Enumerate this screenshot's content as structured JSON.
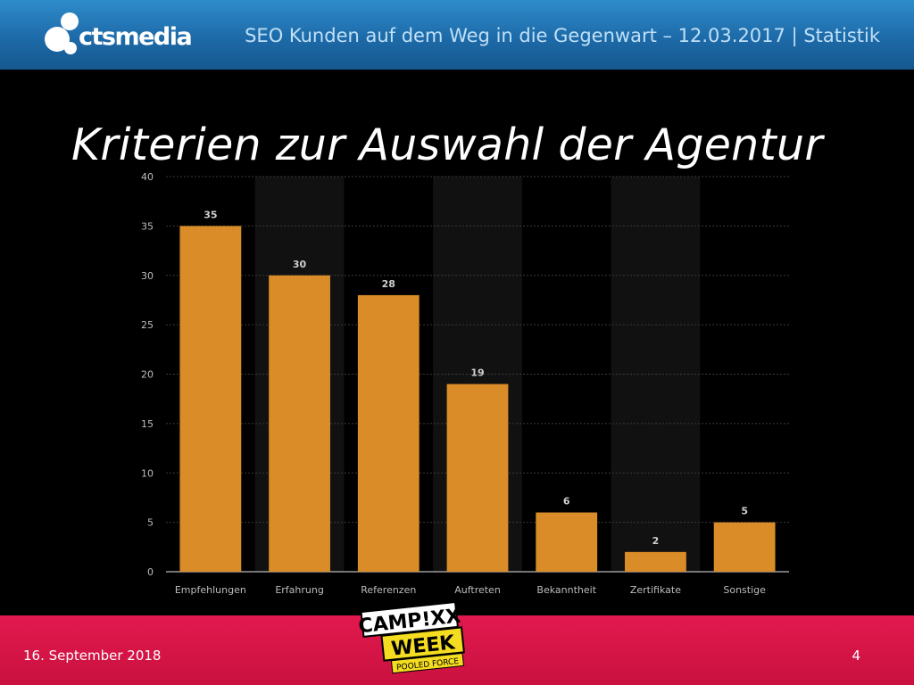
{
  "header": {
    "logo_text": "ctsmedia",
    "title": "SEO Kunden auf dem Weg in die Gegenwart – 12.03.2017 | Statistik"
  },
  "slide": {
    "title": "Kriterien zur Auswahl der Agentur"
  },
  "chart_data": {
    "type": "bar",
    "categories": [
      "Empfehlungen",
      "Erfahrung",
      "Referenzen",
      "Auftreten",
      "Bekanntheit",
      "Zertifikate",
      "Sonstige"
    ],
    "values": [
      35,
      30,
      28,
      19,
      6,
      2,
      5
    ],
    "title": "",
    "xlabel": "",
    "ylabel": "",
    "ylim": [
      0,
      40
    ],
    "yticks": [
      0,
      5,
      10,
      15,
      20,
      25,
      30,
      35,
      40
    ],
    "grid": true,
    "bar_color": "#d98c28",
    "data_labels": true
  },
  "event_logo": {
    "line1": "CAMP!XX",
    "line2": "WEEK",
    "line3": "POOLED FORCE"
  },
  "footer": {
    "date": "16. September 2018",
    "page": "4"
  },
  "colors": {
    "header": "#1d6aa8",
    "footer": "#d8164a",
    "background": "#000000"
  }
}
